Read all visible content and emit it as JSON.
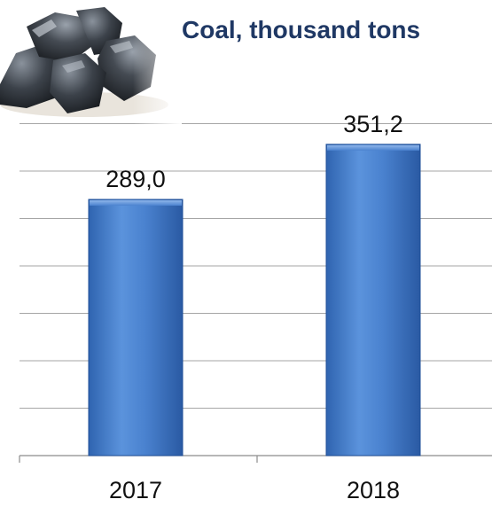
{
  "chart_data": {
    "type": "bar",
    "title": "Coal, thousand tons",
    "categories": [
      "2017",
      "2018"
    ],
    "values": [
      289.0,
      351.2
    ],
    "value_labels": [
      "289,0",
      "351,2"
    ],
    "xlabel": "",
    "ylabel": "",
    "ylim": [
      0,
      400
    ],
    "grid": true,
    "bar_color": "#3f78c4",
    "bar_edge_color": "#1f4f98",
    "title_color": "#1f3864"
  },
  "decor": {
    "photo": "coal-lumps-photo"
  }
}
